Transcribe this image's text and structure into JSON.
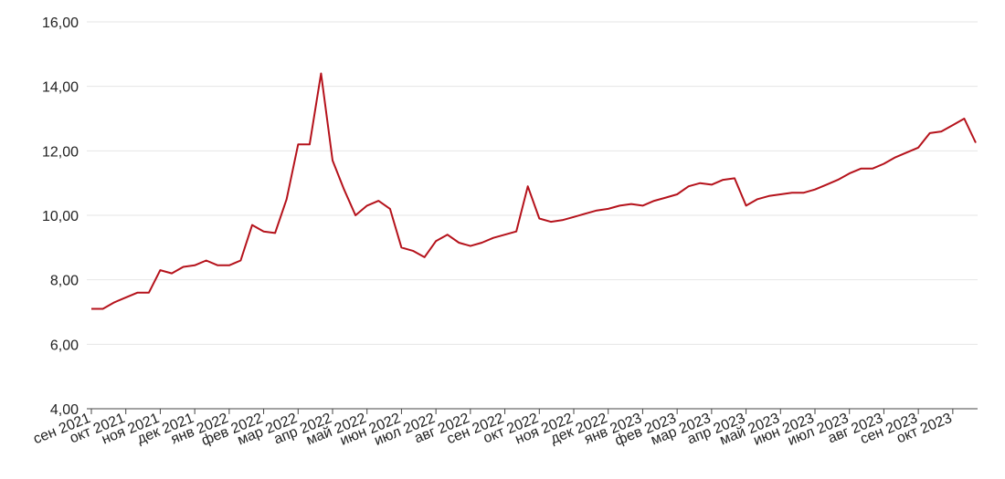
{
  "chart_data": {
    "type": "line",
    "categories": [
      "сен 2021",
      null,
      null,
      "окт 2021",
      null,
      null,
      "ноя 2021",
      null,
      null,
      "дек 2021",
      null,
      null,
      "янв 2022",
      null,
      null,
      "фев 2022",
      null,
      null,
      "мар 2022",
      null,
      null,
      "апр 2022",
      null,
      null,
      "май 2022",
      null,
      null,
      "июн 2022",
      null,
      null,
      "июл 2022",
      null,
      null,
      "авг 2022",
      null,
      null,
      "сен 2022",
      null,
      null,
      "окт 2022",
      null,
      null,
      "ноя 2022",
      null,
      null,
      "дек 2022",
      null,
      null,
      "янв 2023",
      null,
      null,
      "фев 2023",
      null,
      null,
      "мар 2023",
      null,
      null,
      "апр 2023",
      null,
      null,
      "май 2023",
      null,
      null,
      "июн 2023",
      null,
      null,
      "июл 2023",
      null,
      null,
      "авг 2023",
      null,
      null,
      "сен 2023",
      null,
      null,
      "окт 2023",
      null,
      null
    ],
    "series": [
      {
        "color": "#b5121b",
        "values": [
          7.1,
          7.1,
          7.3,
          7.45,
          7.6,
          7.6,
          8.3,
          8.2,
          8.4,
          8.45,
          8.6,
          8.45,
          8.45,
          8.6,
          9.7,
          9.5,
          9.45,
          10.5,
          12.2,
          12.2,
          14.4,
          11.7,
          10.8,
          10.0,
          10.3,
          10.45,
          10.2,
          9.0,
          8.9,
          8.7,
          9.2,
          9.4,
          9.15,
          9.05,
          9.15,
          9.3,
          9.4,
          9.5,
          10.9,
          9.9,
          9.8,
          9.85,
          9.95,
          10.05,
          10.15,
          10.2,
          10.3,
          10.35,
          10.3,
          10.45,
          10.55,
          10.65,
          10.9,
          11.0,
          10.95,
          11.1,
          11.15,
          10.3,
          10.5,
          10.6,
          10.65,
          10.7,
          10.7,
          10.8,
          10.95,
          11.1,
          11.3,
          11.45,
          11.45,
          11.6,
          11.8,
          11.95,
          12.1,
          12.55,
          12.6,
          12.8,
          13.0,
          12.25
        ]
      }
    ],
    "ylim": [
      4,
      16
    ],
    "yticks": [
      {
        "value": 4,
        "label": "4,00"
      },
      {
        "value": 6,
        "label": "6,00"
      },
      {
        "value": 8,
        "label": "8,00"
      },
      {
        "value": 10,
        "label": "10,00"
      },
      {
        "value": 12,
        "label": "12,00"
      },
      {
        "value": 14,
        "label": "14,00"
      },
      {
        "value": 16,
        "label": "16,00"
      }
    ],
    "grid": true
  }
}
